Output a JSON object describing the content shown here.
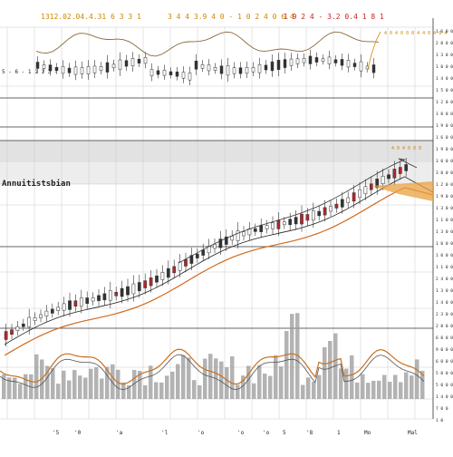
{
  "header": {
    "left_text": "1312.02.04.4.31 6 3 3 1",
    "center_text": "3 4 4 3.9 4 0 - 1 0 2 4 0 6 4",
    "right_text": "1 9 2 4 - 3.2 0.4 1 8 1"
  },
  "upper_panel": {
    "left_label": "5 - 6 - 1 1 1 3 -",
    "right_annotation": "4 0 4 0 0 8 4 4 0 4 0 4"
  },
  "middle_panel": {
    "left_label": "Annuitistsbian",
    "right_annotation": "4 0 4 0 0 8"
  },
  "colors": {
    "candle": "#333333",
    "candle_up": "#ffffff",
    "candle_red": "#b3262b",
    "ma_orange": "#d2691e",
    "ma_black": "#222222",
    "volume_bar": "#999999",
    "osc_line": "#c8701f",
    "grid": "#cccccc",
    "band": "#e0e0e0",
    "text_orange": "#cc8800",
    "text_red": "#cc2222"
  },
  "right_axis": {
    "ticks": [
      "1 6 0 0 0 0",
      "2 0 0 0 0 0",
      "1 3 0 0 0 0",
      "1 0 0 0 0 0",
      "1 4 0 0 0 0",
      "1 5 0 0 0 0",
      "1 2 0 0 0 0",
      "1 0 0 0 0",
      "1 9 0 0 0 0",
      "1 6 0 0 0 0",
      "1 9 0 0 0 0",
      "3 0 0 0 0 0",
      "3 0 0 0 0 0",
      "1 2 0 0 0 0",
      "1 9 0 0 0 0",
      "1 3 0 0 0 0",
      "1 1 0 0 0 0",
      "1 3 0 0 0 0",
      "1 0 0 0 0 0",
      "1 0 0 0 0 0",
      "1 1 0 0 0 0",
      "2 4 0 0 0 0",
      "1 3 0 0 0 0",
      "1 4 0 0 0 0",
      "2 3 0 0 0 0",
      "2 0 0 0 0 0",
      "6 0 0 0 0",
      "9 0 0 0 0",
      "6 0 0 0 0",
      "5 0 0 0 0",
      "5 0 0 0 0",
      "1 4 0 0 0",
      "7 0 0",
      "1 0"
    ]
  },
  "chart_data": {
    "type": "bar",
    "x_ticks": [
      "'5",
      "'0",
      "'a",
      "'l",
      "'o",
      "'o",
      "'o",
      "5",
      "'8",
      "1",
      "Mo",
      "Mal"
    ],
    "grid": true,
    "legend": "none",
    "series": [
      {
        "role": "price_candles"
      },
      {
        "role": "moving_average_orange"
      },
      {
        "role": "moving_average_black"
      },
      {
        "role": "volume_bars"
      },
      {
        "role": "oscillator_line"
      }
    ]
  }
}
